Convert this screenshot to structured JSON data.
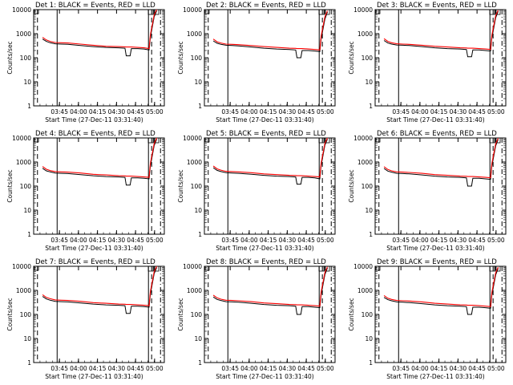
{
  "colors": {
    "events": "#000000",
    "lld": "#ff0000",
    "axis": "#000000"
  },
  "panel_title_suffix": ": BLACK = Events, RED = LLD",
  "ylabel": "Counts/sec",
  "xlabel": "Start Time (27-Dec-11 03:31:40)",
  "xtick_labels": [
    "03:45",
    "04:00",
    "04:15",
    "04:30",
    "04:45",
    "05:00"
  ],
  "ytick_labels": [
    "1",
    "10",
    "100",
    "1000",
    "10000"
  ],
  "chart_data": [
    {
      "type": "line",
      "title": "Det 1",
      "xlabel": "Start Time (27-Dec-11 03:31:40)",
      "ylabel": "Counts/sec",
      "ylog": true,
      "ylim": [
        1,
        10000
      ],
      "x": [
        0,
        3,
        6,
        10,
        15,
        20,
        30,
        40,
        50,
        60,
        65,
        66,
        69,
        70,
        75,
        80,
        84,
        85,
        88,
        90
      ],
      "series": [
        {
          "name": "Events",
          "color": "#000000",
          "values": [
            600,
            480,
            420,
            380,
            370,
            360,
            320,
            290,
            270,
            260,
            250,
            120,
            120,
            240,
            240,
            230,
            210,
            700,
            5000,
            9000
          ]
        },
        {
          "name": "LLD",
          "color": "#ff0000",
          "values": [
            700,
            550,
            480,
            430,
            420,
            410,
            370,
            330,
            300,
            290,
            285,
            280,
            280,
            280,
            270,
            260,
            240,
            900,
            6000,
            10000
          ]
        }
      ]
    },
    {
      "type": "line",
      "title": "Det 2",
      "xlabel": "Start Time (27-Dec-11 03:31:40)",
      "ylabel": "Counts/sec",
      "ylog": true,
      "ylim": [
        1,
        10000
      ],
      "x": [
        0,
        3,
        6,
        10,
        15,
        20,
        30,
        40,
        50,
        60,
        65,
        66,
        69,
        70,
        75,
        80,
        84,
        85,
        88,
        90
      ],
      "series": [
        {
          "name": "Events",
          "color": "#000000",
          "values": [
            500,
            400,
            360,
            330,
            320,
            310,
            280,
            250,
            230,
            220,
            210,
            100,
            100,
            200,
            200,
            190,
            180,
            600,
            4000,
            8000
          ]
        },
        {
          "name": "LLD",
          "color": "#ff0000",
          "values": [
            600,
            460,
            410,
            370,
            360,
            350,
            320,
            290,
            270,
            250,
            245,
            240,
            240,
            240,
            230,
            220,
            210,
            800,
            5000,
            9000
          ]
        }
      ]
    },
    {
      "type": "line",
      "title": "Det 3",
      "xlabel": "Start Time (27-Dec-11 03:31:40)",
      "ylabel": "Counts/sec",
      "ylog": true,
      "ylim": [
        1,
        10000
      ],
      "x": [
        0,
        3,
        6,
        10,
        15,
        20,
        30,
        40,
        50,
        60,
        65,
        66,
        69,
        70,
        75,
        80,
        84,
        85,
        88,
        90
      ],
      "series": [
        {
          "name": "Events",
          "color": "#000000",
          "values": [
            520,
            410,
            370,
            340,
            330,
            320,
            290,
            260,
            240,
            230,
            220,
            110,
            110,
            210,
            210,
            200,
            190,
            650,
            4500,
            8500
          ]
        },
        {
          "name": "LLD",
          "color": "#ff0000",
          "values": [
            620,
            480,
            420,
            380,
            370,
            360,
            330,
            300,
            280,
            260,
            255,
            250,
            250,
            250,
            240,
            230,
            220,
            850,
            5500,
            9500
          ]
        }
      ]
    },
    {
      "type": "line",
      "title": "Det 4",
      "xlabel": "Start Time (27-Dec-11 03:31:40)",
      "ylabel": "Counts/sec",
      "ylog": true,
      "ylim": [
        1,
        10000
      ],
      "x": [
        0,
        3,
        6,
        10,
        15,
        20,
        30,
        40,
        50,
        60,
        65,
        66,
        69,
        70,
        75,
        80,
        84,
        85,
        88,
        90
      ],
      "series": [
        {
          "name": "Events",
          "color": "#000000",
          "values": [
            550,
            430,
            390,
            350,
            340,
            330,
            300,
            270,
            250,
            240,
            230,
            110,
            110,
            220,
            220,
            210,
            200,
            680,
            4800,
            9000
          ]
        },
        {
          "name": "LLD",
          "color": "#ff0000",
          "values": [
            650,
            500,
            440,
            400,
            390,
            380,
            350,
            310,
            290,
            270,
            265,
            260,
            260,
            260,
            250,
            240,
            230,
            880,
            5800,
            10000
          ]
        }
      ]
    },
    {
      "type": "line",
      "title": "Det 5",
      "xlabel": "Start Time (27-Dec-11 03:31:40)",
      "ylabel": "Counts/sec",
      "ylog": true,
      "ylim": [
        1,
        10000
      ],
      "x": [
        0,
        3,
        6,
        10,
        15,
        20,
        30,
        40,
        50,
        60,
        65,
        66,
        69,
        70,
        75,
        80,
        84,
        85,
        88,
        90
      ],
      "series": [
        {
          "name": "Events",
          "color": "#000000",
          "values": [
            580,
            450,
            400,
            360,
            350,
            340,
            310,
            280,
            260,
            250,
            240,
            120,
            120,
            230,
            230,
            220,
            200,
            700,
            5000,
            9000
          ]
        },
        {
          "name": "LLD",
          "color": "#ff0000",
          "values": [
            680,
            520,
            460,
            410,
            400,
            390,
            360,
            320,
            300,
            280,
            275,
            270,
            270,
            270,
            260,
            250,
            240,
            900,
            6000,
            10000
          ]
        }
      ]
    },
    {
      "type": "line",
      "title": "Det 6",
      "xlabel": "Start Time (27-Dec-11 03:31:40)",
      "ylabel": "Counts/sec",
      "ylog": true,
      "ylim": [
        1,
        10000
      ],
      "x": [
        0,
        3,
        6,
        10,
        15,
        20,
        30,
        40,
        50,
        60,
        65,
        66,
        69,
        70,
        75,
        80,
        84,
        85,
        88,
        90
      ],
      "series": [
        {
          "name": "Events",
          "color": "#000000",
          "values": [
            540,
            420,
            380,
            340,
            330,
            320,
            290,
            260,
            240,
            230,
            220,
            100,
            100,
            210,
            210,
            200,
            190,
            660,
            4600,
            8800
          ]
        },
        {
          "name": "LLD",
          "color": "#ff0000",
          "values": [
            640,
            490,
            430,
            390,
            380,
            370,
            340,
            300,
            280,
            260,
            255,
            250,
            250,
            250,
            240,
            230,
            220,
            860,
            5600,
            9800
          ]
        }
      ]
    },
    {
      "type": "line",
      "title": "Det 7",
      "xlabel": "Start Time (27-Dec-11 03:31:40)",
      "ylabel": "Counts/sec",
      "ylog": true,
      "ylim": [
        1,
        10000
      ],
      "x": [
        0,
        3,
        6,
        10,
        15,
        20,
        30,
        40,
        50,
        60,
        65,
        66,
        69,
        70,
        75,
        80,
        84,
        85,
        88,
        90
      ],
      "series": [
        {
          "name": "Events",
          "color": "#000000",
          "values": [
            560,
            440,
            390,
            350,
            340,
            330,
            300,
            270,
            250,
            240,
            230,
            110,
            110,
            220,
            220,
            210,
            200,
            690,
            4900,
            9000
          ]
        },
        {
          "name": "LLD",
          "color": "#ff0000",
          "values": [
            660,
            510,
            450,
            400,
            390,
            380,
            350,
            310,
            290,
            270,
            265,
            260,
            260,
            260,
            250,
            240,
            230,
            890,
            5900,
            10000
          ]
        }
      ]
    },
    {
      "type": "line",
      "title": "Det 8",
      "xlabel": "Start Time (27-Dec-11 03:31:40)",
      "ylabel": "Counts/sec",
      "ylog": true,
      "ylim": [
        1,
        10000
      ],
      "x": [
        0,
        3,
        6,
        10,
        15,
        20,
        30,
        40,
        50,
        60,
        65,
        66,
        69,
        70,
        75,
        80,
        84,
        85,
        88,
        90
      ],
      "series": [
        {
          "name": "Events",
          "color": "#000000",
          "values": [
            530,
            420,
            380,
            340,
            330,
            320,
            290,
            260,
            240,
            230,
            220,
            100,
            100,
            210,
            210,
            200,
            190,
            650,
            4500,
            8500
          ]
        },
        {
          "name": "LLD",
          "color": "#ff0000",
          "values": [
            630,
            490,
            430,
            390,
            380,
            370,
            340,
            300,
            280,
            260,
            255,
            250,
            250,
            250,
            240,
            230,
            220,
            850,
            5500,
            9500
          ]
        }
      ]
    },
    {
      "type": "line",
      "title": "Det 9",
      "xlabel": "Start Time (27-Dec-11 03:31:40)",
      "ylabel": "Counts/sec",
      "ylog": true,
      "ylim": [
        1,
        10000
      ],
      "x": [
        0,
        3,
        6,
        10,
        15,
        20,
        30,
        40,
        50,
        60,
        65,
        66,
        69,
        70,
        75,
        80,
        84,
        85,
        88,
        90
      ],
      "series": [
        {
          "name": "Events",
          "color": "#000000",
          "values": [
            510,
            410,
            370,
            330,
            320,
            310,
            280,
            250,
            230,
            220,
            210,
            100,
            100,
            200,
            200,
            190,
            180,
            620,
            4300,
            8200
          ]
        },
        {
          "name": "LLD",
          "color": "#ff0000",
          "values": [
            610,
            470,
            420,
            380,
            370,
            360,
            330,
            290,
            270,
            250,
            245,
            240,
            240,
            240,
            230,
            220,
            210,
            820,
            5300,
            9200
          ]
        }
      ]
    }
  ]
}
